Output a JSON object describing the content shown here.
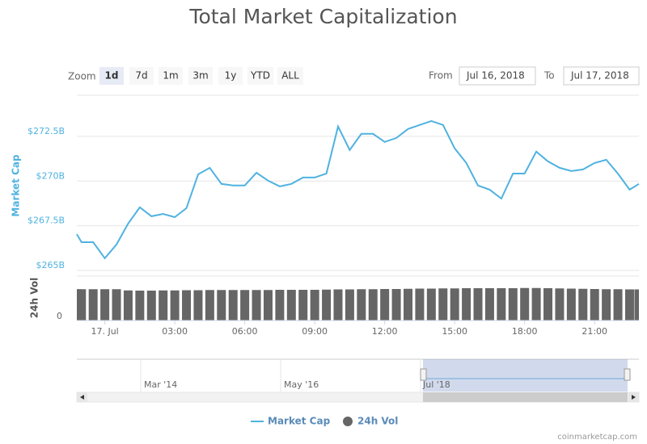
{
  "zoom": {
    "label": "Zoom",
    "buttons": [
      "1d",
      "7d",
      "1m",
      "3m",
      "1y",
      "YTD",
      "ALL"
    ],
    "selected": 0
  },
  "range": {
    "from_label": "From",
    "from": "Jul 16, 2018",
    "to_label": "To",
    "to": "Jul 17, 2018"
  },
  "chart_data": {
    "type": "line",
    "title": "Total Market Capitalization",
    "ylabel": "Market Cap",
    "y2label": "24h Vol",
    "x": [
      -1.2,
      -1.0,
      -0.5,
      0,
      0.5,
      1.0,
      1.5,
      2.0,
      2.5,
      3.0,
      3.5,
      4.0,
      4.5,
      5.0,
      5.5,
      6.0,
      6.5,
      7.0,
      7.5,
      8.0,
      8.5,
      9.0,
      9.5,
      10.0,
      10.5,
      11.0,
      11.5,
      12.0,
      12.5,
      13.0,
      13.5,
      14.0,
      14.5,
      15.0,
      15.5,
      16.0,
      16.5,
      17.0,
      17.5,
      18.0,
      18.5,
      19.0,
      19.5,
      20.0,
      20.5,
      21.0,
      21.5,
      22.0,
      22.5,
      22.9
    ],
    "xlim": [
      -1.2,
      22.9
    ],
    "xticks": [
      {
        "value": 0,
        "label": "17. Jul"
      },
      {
        "value": 3,
        "label": "03:00"
      },
      {
        "value": 6,
        "label": "06:00"
      },
      {
        "value": 9,
        "label": "09:00"
      },
      {
        "value": 12,
        "label": "12:00"
      },
      {
        "value": 15,
        "label": "15:00"
      },
      {
        "value": 18,
        "label": "18:00"
      },
      {
        "value": 21,
        "label": "21:00"
      }
    ],
    "ylim": [
      265,
      274.8
    ],
    "yticks": [
      {
        "value": 265,
        "label": "$265B"
      },
      {
        "value": 267.5,
        "label": "$267.5B"
      },
      {
        "value": 270,
        "label": "$270B"
      },
      {
        "value": 272.5,
        "label": "$272.5B"
      }
    ],
    "y2lim": [
      0,
      22
    ],
    "y2ticks": [
      0
    ],
    "grid": true,
    "series": [
      {
        "name": "Market Cap",
        "color": "#4fb2e0",
        "values": [
          267.03,
          266.58,
          266.58,
          265.68,
          266.45,
          267.62,
          268.53,
          268.03,
          268.16,
          267.98,
          268.48,
          270.38,
          270.74,
          269.84,
          269.75,
          269.75,
          270.47,
          270.02,
          269.7,
          269.84,
          270.2,
          270.2,
          270.42,
          273.05,
          271.74,
          272.64,
          272.64,
          272.19,
          272.41,
          272.91,
          273.14,
          273.36,
          273.14,
          271.83,
          271.01,
          269.75,
          269.52,
          269.02,
          270.42,
          270.42,
          271.65,
          271.1,
          270.74,
          270.56,
          270.65,
          271.01,
          271.19,
          270.42,
          269.52,
          269.84
        ]
      },
      {
        "name": "24h Vol",
        "color": "#666666",
        "axis": "y2",
        "values": [
          15.5,
          15.5,
          15.5,
          15.5,
          15.5,
          14.9,
          14.8,
          14.8,
          14.9,
          14.9,
          15.0,
          15.0,
          15.1,
          15.1,
          15.1,
          15.1,
          15.1,
          15.1,
          15.2,
          15.2,
          15.2,
          15.2,
          15.3,
          15.4,
          15.4,
          15.5,
          15.5,
          15.6,
          15.6,
          15.7,
          15.8,
          15.8,
          15.9,
          15.9,
          16.0,
          16.0,
          16.0,
          16.0,
          16.0,
          16.1,
          16.1,
          16.0,
          15.9,
          15.8,
          15.7,
          15.6,
          15.5,
          15.5,
          15.4,
          15.4
        ]
      }
    ]
  },
  "navigator": {
    "labels": [
      "Mar '14",
      "May '16",
      "Jul '18"
    ]
  },
  "credit": "coinmarketcap.com"
}
